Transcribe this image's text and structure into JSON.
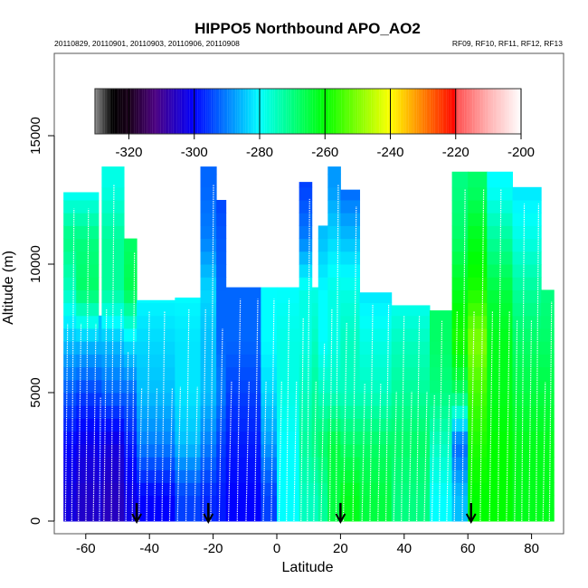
{
  "chart_data": {
    "type": "heatmap",
    "title": "HIPPO5 Northbound APO_AO2",
    "subtitle_left": "20110829, 20110901, 20110903, 20110906, 20110908",
    "subtitle_right": "RF09, RF10, RF11, RF12, RF13",
    "xlabel": "Latitude",
    "ylabel": "Altitude (m)",
    "xlim": [
      -70,
      90
    ],
    "ylim": [
      -500,
      18200
    ],
    "xticks": [
      -60,
      -40,
      -20,
      0,
      20,
      40,
      60,
      80
    ],
    "xtick_labels": [
      "-60",
      "-40",
      "-20",
      "0",
      "20",
      "40",
      "60",
      "80"
    ],
    "yticks": [
      0,
      5000,
      10000,
      15000
    ],
    "ytick_labels": [
      "0",
      "5000",
      "10000",
      "15000"
    ],
    "colorbar": {
      "range": [
        -330,
        -200
      ],
      "ticks": [
        -320,
        -300,
        -280,
        -260,
        -240,
        -220,
        -200
      ],
      "tick_labels": [
        "-320",
        "-300",
        "-280",
        "-260",
        "-240",
        "-220",
        "-200"
      ],
      "stops": [
        {
          "v": -330,
          "c": "#808080"
        },
        {
          "v": -325,
          "c": "#000000"
        },
        {
          "v": -320,
          "c": "#1a001a"
        },
        {
          "v": -312,
          "c": "#4b0080"
        },
        {
          "v": -300,
          "c": "#0000ff"
        },
        {
          "v": -280,
          "c": "#00ffff"
        },
        {
          "v": -260,
          "c": "#00ff00"
        },
        {
          "v": -240,
          "c": "#ffff00"
        },
        {
          "v": -220,
          "c": "#ff0000"
        },
        {
          "v": -219.9,
          "c": "#ff4d4d"
        },
        {
          "v": -210,
          "c": "#ffb0b0"
        },
        {
          "v": -200,
          "c": "#ffffff"
        }
      ]
    },
    "band_height_m": 2000,
    "columns": [
      {
        "lat": [
          -67,
          -63
        ],
        "top": 12800,
        "values": [
          -303,
          -300,
          -293,
          -285,
          -275,
          -270,
          -280
        ]
      },
      {
        "lat": [
          -63,
          -56
        ],
        "top": 12800,
        "values": [
          -305,
          -302,
          -295,
          -285,
          -268,
          -270,
          -280
        ]
      },
      {
        "lat": [
          -56,
          -55
        ],
        "top": 8000,
        "values": [
          -303,
          -300,
          -295,
          -285
        ]
      },
      {
        "lat": [
          -55,
          -48
        ],
        "top": 13800,
        "values": [
          -306,
          -303,
          -292,
          -285,
          -272,
          -272,
          -278
        ]
      },
      {
        "lat": [
          -48,
          -44
        ],
        "top": 11000,
        "values": [
          -302,
          -298,
          -292,
          -282,
          -266,
          -268
        ]
      },
      {
        "lat": [
          -44,
          -32
        ],
        "top": 8600,
        "values": [
          -300,
          -290,
          -285,
          -283,
          -280
        ]
      },
      {
        "lat": [
          -32,
          -24
        ],
        "top": 8700,
        "values": [
          -295,
          -285,
          -282,
          -282,
          -280
        ]
      },
      {
        "lat": [
          -24,
          -19
        ],
        "top": 13800,
        "values": [
          -297,
          -290,
          -285,
          -285,
          -283,
          -290,
          -292
        ]
      },
      {
        "lat": [
          -19,
          -16
        ],
        "top": 12500,
        "values": [
          -298,
          -295,
          -290,
          -292,
          -292,
          -293,
          -295
        ]
      },
      {
        "lat": [
          -16,
          -5
        ],
        "top": 9100,
        "values": [
          -300,
          -298,
          -295,
          -292,
          -292
        ]
      },
      {
        "lat": [
          -5,
          0
        ],
        "top": 9100,
        "values": [
          -295,
          -288,
          -283,
          -280,
          -280
        ]
      },
      {
        "lat": [
          0,
          7
        ],
        "top": 9100,
        "values": [
          -280,
          -280,
          -278,
          -278,
          -280
        ]
      },
      {
        "lat": [
          7,
          11
        ],
        "top": 13200,
        "values": [
          -275,
          -272,
          -275,
          -278,
          -278,
          -290,
          -295
        ]
      },
      {
        "lat": [
          11,
          13
        ],
        "top": 9100,
        "values": [
          -275,
          -270,
          -272,
          -275,
          -278
        ]
      },
      {
        "lat": [
          13,
          16
        ],
        "top": 11500,
        "values": [
          -272,
          -268,
          -275,
          -280,
          -280,
          -285
        ]
      },
      {
        "lat": [
          16,
          20
        ],
        "top": 13800,
        "values": [
          -265,
          -265,
          -275,
          -278,
          -278,
          -283,
          -288
        ]
      },
      {
        "lat": [
          20,
          26
        ],
        "top": 12900,
        "values": [
          -262,
          -268,
          -275,
          -275,
          -278,
          -285,
          -292
        ]
      },
      {
        "lat": [
          26,
          36
        ],
        "top": 8900,
        "values": [
          -265,
          -268,
          -275,
          -278,
          -282
        ]
      },
      {
        "lat": [
          36,
          48
        ],
        "top": 8400,
        "values": [
          -270,
          -268,
          -272,
          -275,
          -280
        ]
      },
      {
        "lat": [
          48,
          55
        ],
        "top": 8200,
        "values": [
          -280,
          -275,
          -270,
          -268,
          -268
        ]
      },
      {
        "lat": [
          55,
          60
        ],
        "top": 13600,
        "values": [
          -285,
          -292,
          -268,
          -258,
          -262,
          -268,
          -270
        ]
      },
      {
        "lat": [
          60,
          66
        ],
        "top": 13600,
        "values": [
          -260,
          -258,
          -255,
          -250,
          -258,
          -262,
          -268
        ]
      },
      {
        "lat": [
          66,
          74
        ],
        "top": 13600,
        "values": [
          -260,
          -260,
          -262,
          -262,
          -265,
          -272,
          -280
        ]
      },
      {
        "lat": [
          74,
          83
        ],
        "top": 13000,
        "values": [
          -262,
          -262,
          -265,
          -268,
          -272,
          -278,
          -282
        ]
      },
      {
        "lat": [
          83,
          87
        ],
        "top": 9000,
        "values": [
          -262,
          -262,
          -265,
          -268,
          -270
        ]
      }
    ],
    "arrow_latitudes": [
      -44,
      -21.5,
      20,
      61
    ]
  }
}
